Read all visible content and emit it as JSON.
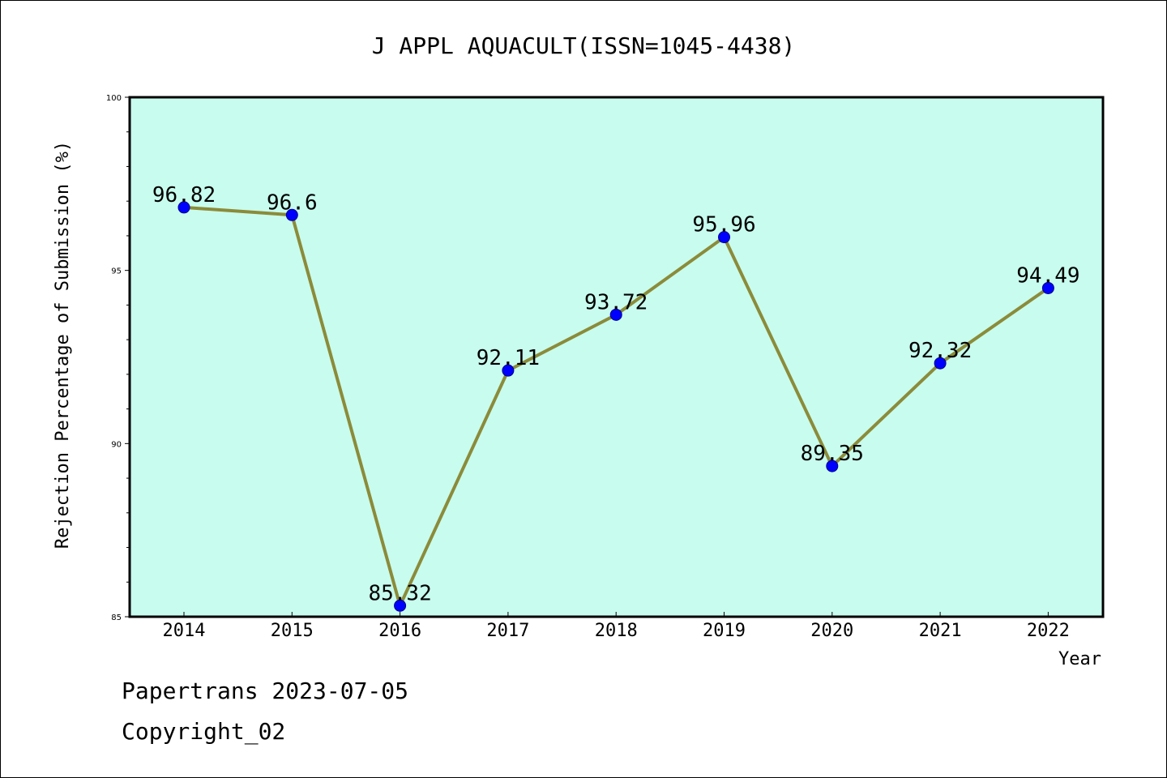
{
  "chart_data": {
    "type": "line",
    "title": "J APPL AQUACULT(ISSN=1045-4438)",
    "xlabel": "Year",
    "ylabel": "Rejection Percentage of Submission (%)",
    "categories": [
      "2014",
      "2015",
      "2016",
      "2017",
      "2018",
      "2019",
      "2020",
      "2021",
      "2022"
    ],
    "values": [
      96.82,
      96.6,
      85.32,
      92.11,
      93.72,
      95.96,
      89.35,
      92.32,
      94.49
    ],
    "data_labels": [
      "96.82",
      "96.6",
      "85.32",
      "92.11",
      "93.72",
      "95.96",
      "89.35",
      "92.32",
      "94.49"
    ],
    "ylim": [
      85,
      100
    ],
    "y_ticks": [
      "85",
      "90",
      "95",
      "100"
    ],
    "y_tick_values": [
      85,
      90,
      95,
      100
    ],
    "y_minor_step": 1,
    "grid": false,
    "legend": "none",
    "colors": {
      "plot_background": "#c8fcee",
      "line": "#8b8b3a",
      "marker": "#0000ff",
      "axis": "#000000"
    }
  },
  "footer": {
    "line1": "Papertrans 2023-07-05",
    "line2": "Copyright_02"
  }
}
